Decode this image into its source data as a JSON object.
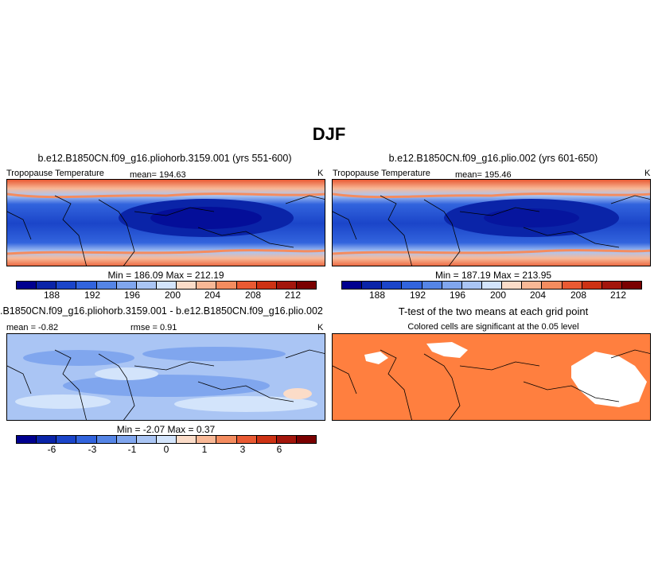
{
  "page": {
    "title": "DJF"
  },
  "panel_left": {
    "heading": "b.e12.B1850CN.f09_g16.pliohorb.3159.001 (yrs 551-600)",
    "field": "Tropopause Temperature",
    "mean": "mean= 194.63",
    "unit": "K",
    "minmax": "Min = 186.09  Max = 212.19",
    "ticks": [
      "188",
      "192",
      "196",
      "200",
      "204",
      "208",
      "212"
    ]
  },
  "panel_right": {
    "heading": "b.e12.B1850CN.f09_g16.plio.002 (yrs 601-650)",
    "field": "Tropopause Temperature",
    "mean": "mean= 195.46",
    "unit": "K",
    "minmax": "Min = 187.19  Max = 213.95",
    "ticks": [
      "188",
      "192",
      "196",
      "200",
      "204",
      "208",
      "212"
    ]
  },
  "panel_diff": {
    "heading": ".B1850CN.f09_g16.pliohorb.3159.001 - b.e12.B1850CN.f09_g16.plio.002",
    "mean": "mean =  -0.82",
    "rmse": "rmse =   0.91",
    "unit": "K",
    "minmax": "Min =  -2.07  Max =   0.37",
    "ticks": [
      "-6",
      "-3",
      "-1",
      "0",
      "1",
      "3",
      "6"
    ]
  },
  "panel_ttest": {
    "heading": "T-test of the two means at each grid point",
    "subheading": "Colored cells are significant at the 0.05 level"
  },
  "colors": {
    "palette": [
      "#00008f",
      "#0a24a8",
      "#1b45c9",
      "#3264dd",
      "#5585e6",
      "#80a6ee",
      "#aac5f4",
      "#d3e4fb",
      "#fbdcc8",
      "#f8b896",
      "#f48c5f",
      "#e95a33",
      "#cd3214",
      "#a3160c",
      "#7a0000"
    ],
    "significant": "#ff7f3f"
  }
}
